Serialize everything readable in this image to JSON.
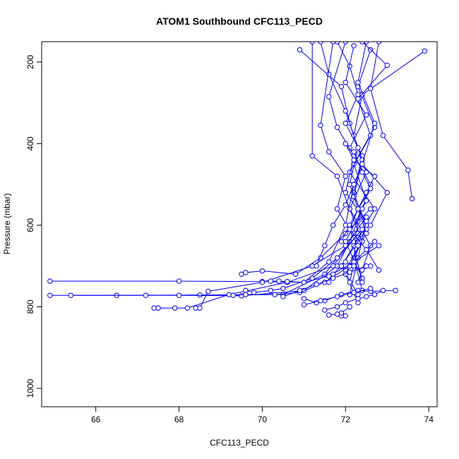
{
  "chart_data": {
    "type": "line",
    "title": "ATOM1 Southbound CFC113_PECD",
    "xlabel": "CFC113_PECD",
    "ylabel": "Pressure (mbar)",
    "xlim": [
      64.7,
      74.2
    ],
    "ylim": [
      1045,
      150
    ],
    "y_reversed": true,
    "x_ticks": [
      66,
      68,
      70,
      72,
      74
    ],
    "y_ticks": [
      200,
      400,
      600,
      800,
      1000
    ],
    "series_color": "#0000ff",
    "marker": "open-circle",
    "grid": false,
    "series": [
      {
        "x": [
          71.8,
          72.1,
          72.3,
          72.0,
          72.4,
          72.2,
          72.5,
          71.9,
          72.3
        ],
        "y": [
          150,
          210,
          280,
          350,
          430,
          520,
          610,
          700,
          770
        ]
      },
      {
        "x": [
          72.2,
          72.0,
          72.5,
          72.1,
          72.6,
          72.3,
          72.2,
          72.4
        ],
        "y": [
          160,
          250,
          330,
          410,
          500,
          590,
          680,
          760
        ]
      },
      {
        "x": [
          72.6,
          72.3,
          72.7,
          72.2,
          72.5,
          72.0,
          72.4
        ],
        "y": [
          170,
          260,
          360,
          450,
          540,
          640,
          730
        ]
      },
      {
        "x": [
          73.9,
          72.4,
          72.2,
          72.5,
          72.1,
          72.6,
          72.3
        ],
        "y": [
          173,
          280,
          380,
          470,
          560,
          650,
          740
        ]
      },
      {
        "x": [
          70.9,
          71.9,
          72.1,
          72.4,
          72.2,
          72.5,
          72.0
        ],
        "y": [
          170,
          260,
          350,
          440,
          530,
          620,
          710
        ]
      },
      {
        "x": [
          72.4,
          73.0,
          72.3,
          72.6,
          72.1,
          72.7,
          72.2,
          72.4
        ],
        "y": [
          150,
          208,
          290,
          380,
          470,
          560,
          650,
          740
        ]
      },
      {
        "x": [
          71.4,
          71.6,
          72.0,
          72.3,
          72.1,
          72.5,
          71.9
        ],
        "y": [
          150,
          230,
          320,
          410,
          500,
          600,
          700
        ]
      },
      {
        "x": [
          71.2,
          71.2,
          71.8,
          72.1,
          72.4,
          72.0,
          72.3
        ],
        "y": [
          150,
          430,
          480,
          560,
          640,
          720,
          790
        ]
      },
      {
        "x": [
          72.0,
          71.6,
          71.8,
          72.2,
          72.0,
          72.5,
          72.3,
          72.1
        ],
        "y": [
          150,
          285,
          360,
          430,
          520,
          590,
          680,
          770
        ]
      },
      {
        "x": [
          71.7,
          71.4,
          71.6,
          72.0,
          71.8,
          72.3,
          72.1
        ],
        "y": [
          150,
          355,
          420,
          480,
          560,
          650,
          740
        ]
      },
      {
        "x": [
          72.8,
          72.6,
          72.9,
          73.5,
          73.6
        ],
        "y": [
          150,
          265,
          380,
          465,
          535
        ]
      },
      {
        "x": [
          72.5,
          72.3,
          72.7,
          72.4,
          73.0,
          72.6
        ],
        "y": [
          150,
          250,
          350,
          450,
          520,
          600
        ]
      },
      {
        "x": [
          64.9,
          68.0,
          70.0,
          71.0,
          71.6,
          72.0,
          72.2
        ],
        "y": [
          737,
          737,
          738,
          740,
          690,
          600,
          500
        ]
      },
      {
        "x": [
          64.9,
          66.5,
          68.5,
          70.5,
          71.5,
          72.1,
          72.4
        ],
        "y": [
          772,
          772,
          771,
          770,
          720,
          640,
          560
        ]
      },
      {
        "x": [
          65.4,
          67.2,
          68.0,
          69.5,
          71.0,
          71.8,
          72.2
        ],
        "y": [
          772,
          772,
          772,
          773,
          760,
          700,
          620
        ]
      },
      {
        "x": [
          67.4,
          67.5,
          67.9,
          68.2,
          69.2,
          70.6,
          71.7,
          72.3
        ],
        "y": [
          803,
          803,
          803,
          803,
          770,
          740,
          700,
          620
        ]
      },
      {
        "x": [
          68.4,
          68.5,
          68.7,
          70.0,
          71.2,
          72.0,
          72.5
        ],
        "y": [
          803,
          803,
          762,
          740,
          700,
          650,
          580
        ]
      },
      {
        "x": [
          69.5,
          69.6,
          70.0,
          70.8,
          71.4,
          72.0,
          72.6
        ],
        "y": [
          720,
          716,
          712,
          720,
          680,
          620,
          560
        ]
      },
      {
        "x": [
          69.6,
          69.8,
          70.2,
          70.5,
          71.2,
          71.8,
          72.4
        ],
        "y": [
          760,
          765,
          760,
          755,
          730,
          680,
          610
        ]
      },
      {
        "x": [
          69.3,
          69.6,
          70.3,
          70.9,
          71.5,
          72.1,
          72.7
        ],
        "y": [
          772,
          770,
          770,
          765,
          740,
          700,
          640
        ]
      },
      {
        "x": [
          70.2,
          70.4,
          70.6,
          71.0,
          71.6,
          72.2,
          72.8
        ],
        "y": [
          737,
          737,
          738,
          740,
          725,
          690,
          650
        ]
      },
      {
        "x": [
          71.0,
          71.3,
          71.5,
          71.9,
          72.3,
          72.6,
          73.2
        ],
        "y": [
          780,
          790,
          785,
          770,
          760,
          762,
          760
        ]
      },
      {
        "x": [
          71.6,
          71.8,
          71.9,
          72.0,
          71.9,
          72.1
        ],
        "y": [
          820,
          818,
          822,
          822,
          815,
          800
        ]
      },
      {
        "x": [
          71.5,
          71.8,
          72.0,
          72.3,
          72.5,
          72.7,
          72.9
        ],
        "y": [
          808,
          800,
          790,
          780,
          775,
          770,
          760
        ]
      },
      {
        "x": [
          71.6,
          71.7,
          71.9,
          72.0,
          72.2,
          72.4,
          72.6
        ],
        "y": [
          740,
          720,
          700,
          690,
          700,
          710,
          700
        ]
      },
      {
        "x": [
          71.9,
          72.1,
          72.3,
          72.5,
          72.7,
          72.2,
          72.0
        ],
        "y": [
          640,
          600,
          560,
          520,
          480,
          440,
          400
        ]
      },
      {
        "x": [
          71.3,
          71.5,
          71.7,
          72.0,
          72.2,
          72.4
        ],
        "y": [
          700,
          650,
          600,
          550,
          500,
          450
        ]
      },
      {
        "x": [
          72.2,
          72.4,
          72.6,
          72.3,
          72.1,
          72.5,
          72.8
        ],
        "y": [
          420,
          470,
          510,
          560,
          610,
          660,
          710
        ]
      },
      {
        "x": [
          70.5,
          70.9,
          71.3,
          71.7,
          72.1,
          72.5
        ],
        "y": [
          775,
          760,
          745,
          730,
          715,
          700
        ]
      },
      {
        "x": [
          71.0,
          71.4,
          71.8,
          72.2,
          72.6
        ],
        "y": [
          795,
          785,
          775,
          765,
          755
        ]
      }
    ]
  }
}
